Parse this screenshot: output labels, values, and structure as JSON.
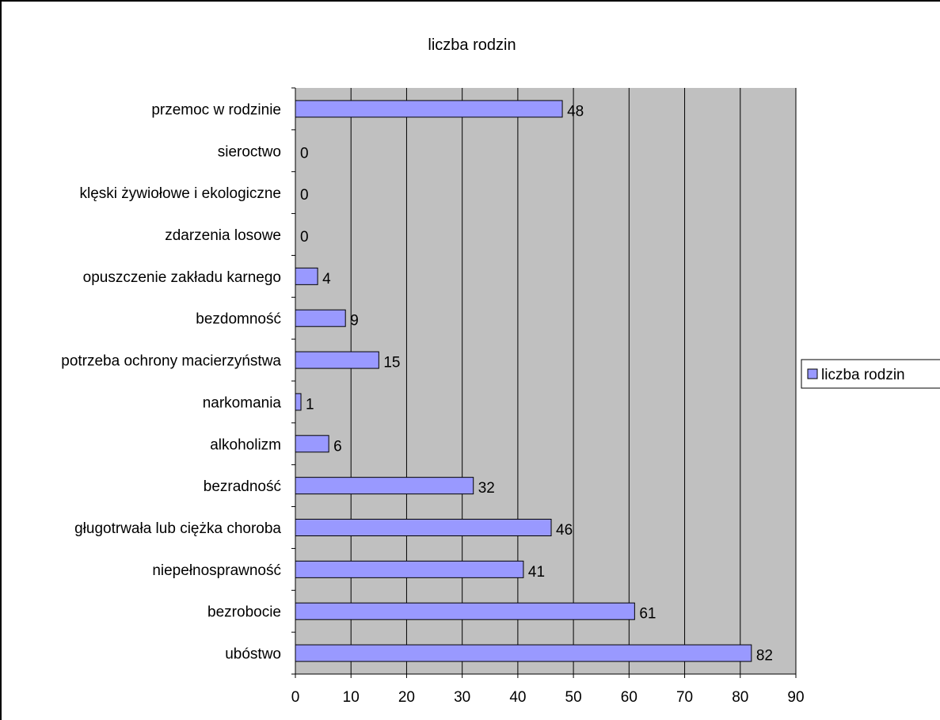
{
  "chart_data": {
    "type": "bar",
    "orientation": "horizontal",
    "title": "liczba rodzin",
    "xlabel": "",
    "ylabel": "",
    "xlim": [
      0,
      90
    ],
    "x_ticks": [
      0,
      10,
      20,
      30,
      40,
      50,
      60,
      70,
      80,
      90
    ],
    "grid": true,
    "legend_position": "right",
    "categories": [
      "przemoc w rodzinie",
      "sieroctwo",
      "klęski żywiołowe i ekologiczne",
      "zdarzenia losowe",
      "opuszczenie zakładu karnego",
      "bezdomność",
      "potrzeba ochrony macierzyństwa",
      "narkomania",
      "alkoholizm",
      "bezradność",
      "gługotrwała lub ciężka choroba",
      "niepełnosprawność",
      "bezrobocie",
      "ubóstwo"
    ],
    "series": [
      {
        "name": "liczba rodzin",
        "values": [
          48,
          0,
          0,
          0,
          4,
          9,
          15,
          1,
          6,
          32,
          46,
          41,
          61,
          82
        ]
      }
    ],
    "colors": {
      "bar_fill": "#9999ff",
      "plot_background": "#c0c0c0",
      "gridline": "#000000"
    }
  }
}
